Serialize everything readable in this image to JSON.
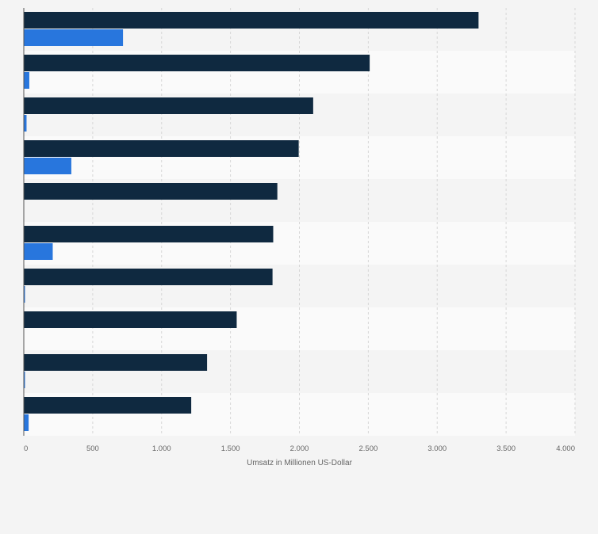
{
  "chart_data": {
    "type": "bar",
    "orientation": "horizontal",
    "title": "",
    "xlabel": "Umsatz in Millionen US-Dollar",
    "ylabel": "",
    "xlim": [
      0,
      4000
    ],
    "grid": true,
    "legend": "none",
    "categories": [
      "",
      "",
      "",
      "",
      "",
      "",
      "",
      "",
      "",
      ""
    ],
    "series": [
      {
        "color": "#0f2940",
        "values": [
          3300,
          2510,
          2100,
          1995,
          1840,
          1810,
          1805,
          1545,
          1330,
          1215
        ]
      },
      {
        "color": "#2876dd",
        "values": [
          720,
          40,
          20,
          345,
          0,
          210,
          5,
          0,
          5,
          35
        ]
      }
    ],
    "xticks": [
      {
        "value": 0,
        "label": "0"
      },
      {
        "value": 500,
        "label": "500"
      },
      {
        "value": 1000,
        "label": "1.000"
      },
      {
        "value": 1500,
        "label": "1.500"
      },
      {
        "value": 2000,
        "label": "2.000"
      },
      {
        "value": 2500,
        "label": "2.500"
      },
      {
        "value": 3000,
        "label": "3.000"
      },
      {
        "value": 3500,
        "label": "3.500"
      },
      {
        "value": 4000,
        "label": "4.000"
      }
    ]
  },
  "colors": {
    "background": "#f4f4f4",
    "row_even": "#f4f4f4",
    "row_odd": "#fafafa",
    "grid": "#d6d6d6",
    "axis": "#555555",
    "tick_text": "#666666"
  }
}
